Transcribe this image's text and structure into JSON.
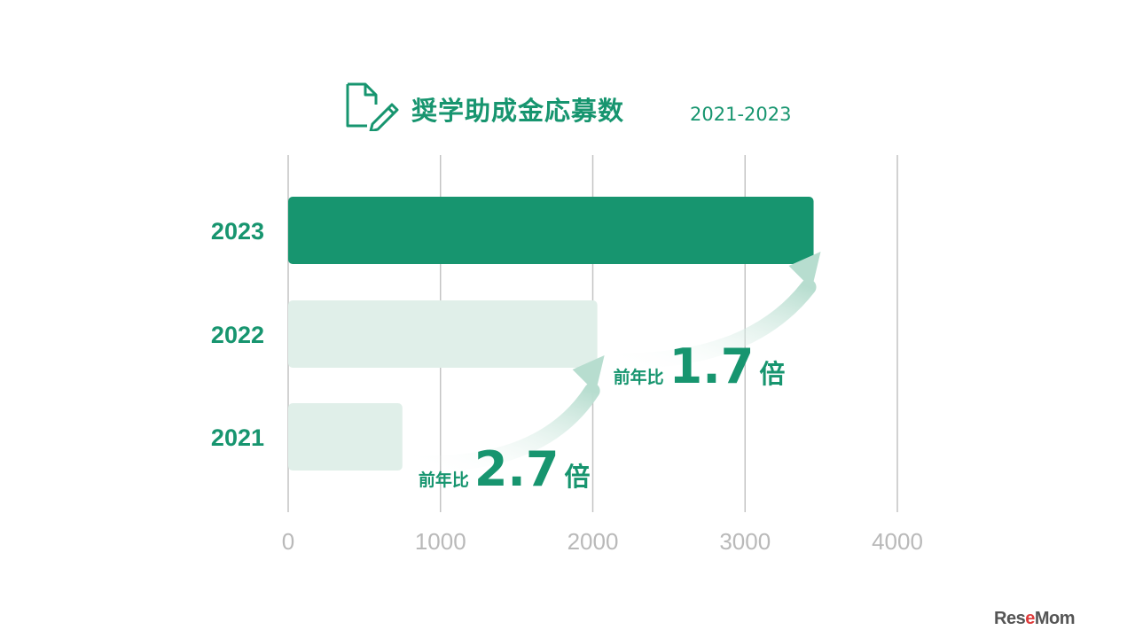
{
  "title": {
    "text": "奨学助成金応募数",
    "range": "2021-2023",
    "icon": "document-edit-icon"
  },
  "chart_data": {
    "type": "bar",
    "orientation": "horizontal",
    "categories": [
      "2023",
      "2022",
      "2021"
    ],
    "values": [
      3450,
      2030,
      750
    ],
    "xlim": [
      0,
      4000
    ],
    "xticks": [
      "0",
      "1000",
      "2000",
      "3000",
      "4000"
    ],
    "grid": "vertical",
    "annotations": [
      {
        "from": "2021",
        "to": "2022",
        "prefix": "前年比",
        "value": "2.7",
        "suffix": "倍"
      },
      {
        "from": "2022",
        "to": "2023",
        "prefix": "前年比",
        "value": "1.7",
        "suffix": "倍"
      }
    ]
  },
  "colors": {
    "highlight_bar": "#17956f",
    "muted_bar": "#e0efe9",
    "accent_text": "#17956f",
    "gridline": "#c4c4c4",
    "tick_text": "#b9b9b9",
    "arrow": "#b7ddcf"
  },
  "watermark": {
    "before": "Res",
    "e": "e",
    "after": "Mom"
  }
}
